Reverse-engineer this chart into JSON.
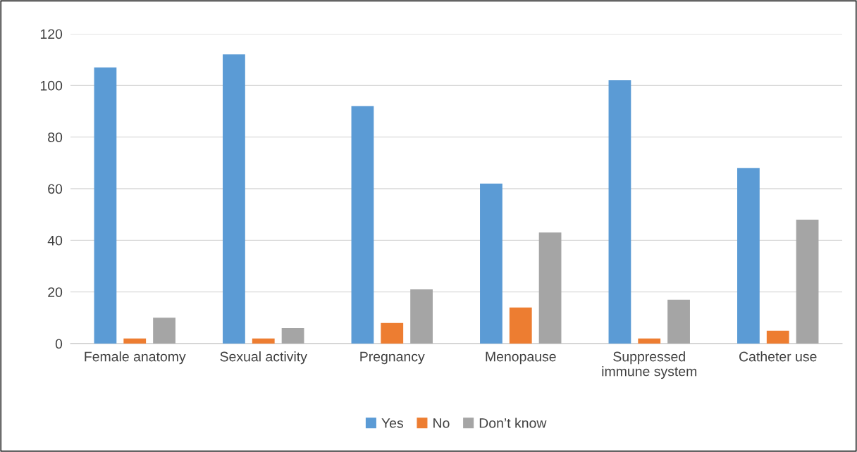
{
  "chart_data": {
    "type": "bar",
    "categories": [
      "Female anatomy",
      "Sexual activity",
      "Pregnancy",
      "Menopause",
      "Suppressed immune system",
      "Catheter use"
    ],
    "series": [
      {
        "name": "Yes",
        "color": "#5b9bd5",
        "values": [
          107,
          112,
          92,
          62,
          102,
          68
        ]
      },
      {
        "name": "No",
        "color": "#ed7d31",
        "values": [
          2,
          2,
          8,
          14,
          2,
          5
        ]
      },
      {
        "name": "Don’t know",
        "color": "#a5a5a5",
        "values": [
          10,
          6,
          21,
          43,
          17,
          48
        ]
      }
    ],
    "ylim": [
      0,
      120
    ],
    "yticks": [
      0,
      20,
      40,
      60,
      80,
      100,
      120
    ],
    "grid": "y",
    "legend": "bottom"
  }
}
